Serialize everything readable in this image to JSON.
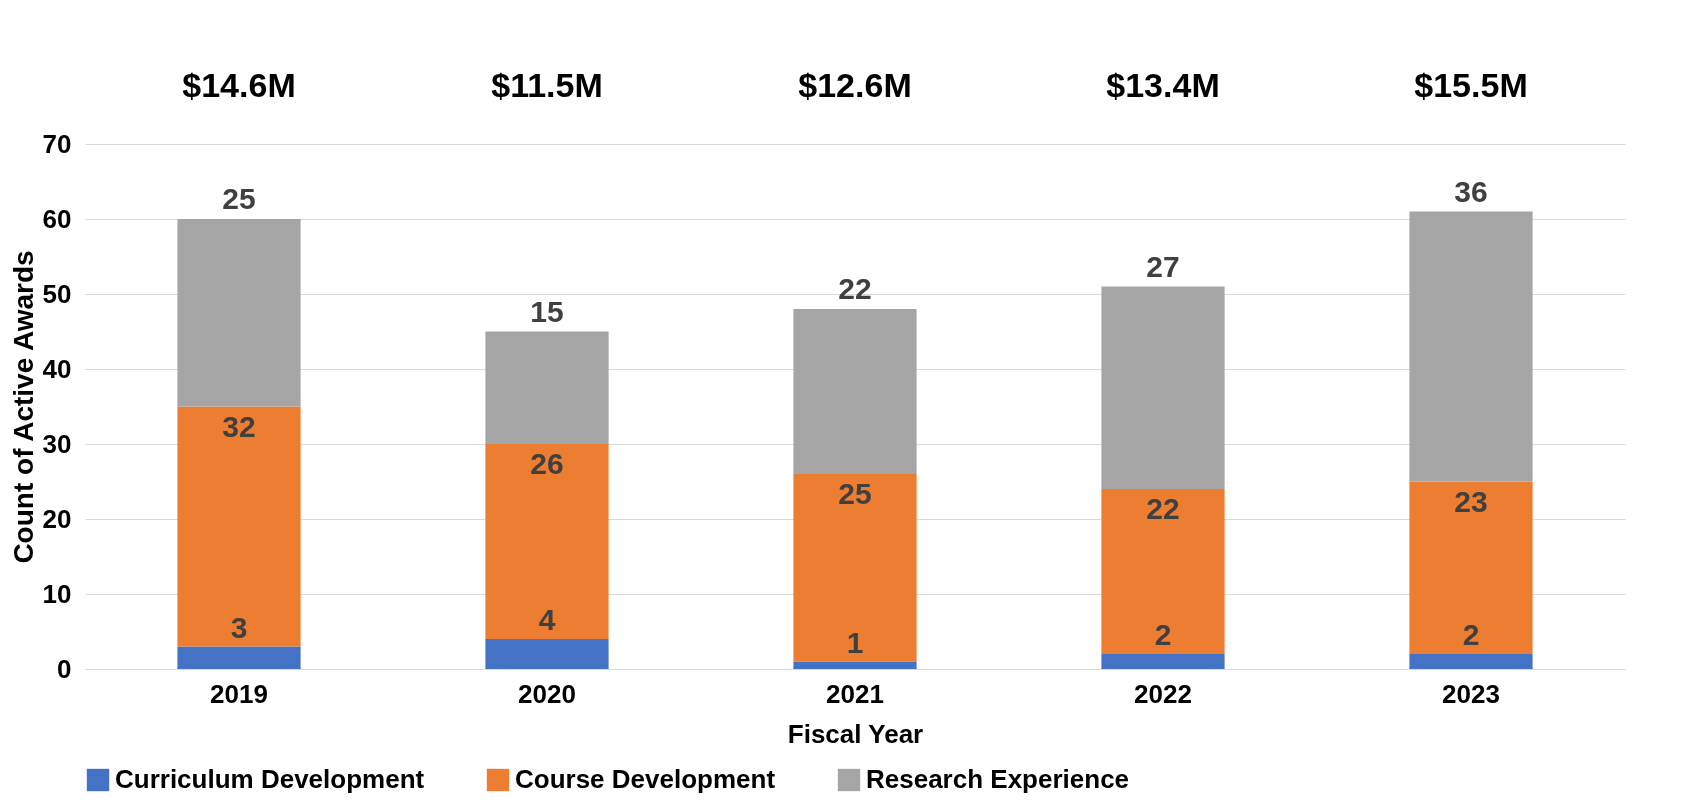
{
  "chart_data": {
    "type": "bar",
    "stacked": true,
    "xlabel": "Fiscal Year",
    "ylabel": "Count of Active Awards",
    "categories": [
      "2019",
      "2020",
      "2021",
      "2022",
      "2023"
    ],
    "series": [
      {
        "name": "Curriculum Development",
        "color": "#4472c4",
        "values": [
          3,
          4,
          1,
          2,
          2
        ]
      },
      {
        "name": "Course Development",
        "color": "#ed7d31",
        "values": [
          32,
          26,
          25,
          22,
          23
        ]
      },
      {
        "name": "Research Experience",
        "color": "#a5a5a5",
        "values": [
          25,
          15,
          22,
          27,
          36
        ]
      }
    ],
    "ylim": [
      0,
      70
    ],
    "yticks": [
      0,
      10,
      20,
      30,
      40,
      50,
      60,
      70
    ],
    "grid": "y",
    "legend": "bottom",
    "data_labels": true,
    "annotations": [
      "$14.6M",
      "$11.5M",
      "$12.6M",
      "$13.4M",
      "$15.5M"
    ]
  }
}
